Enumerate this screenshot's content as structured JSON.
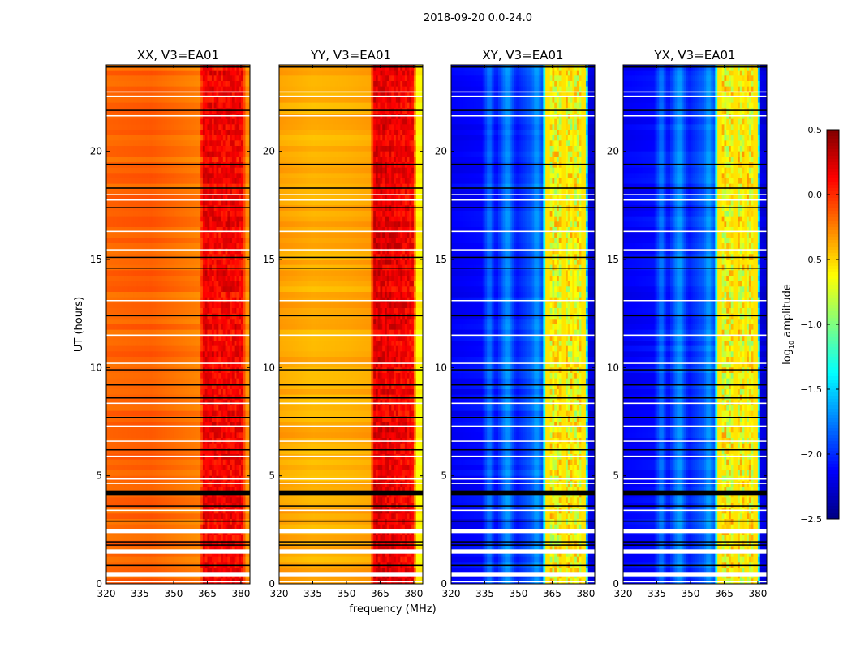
{
  "chart_data": {
    "type": "heatmap",
    "suptitle": "2018-09-20 0.0-24.0",
    "xlabel": "frequency (MHz)",
    "ylabel": "UT (hours)",
    "xlim": [
      320,
      384
    ],
    "ylim": [
      0,
      24
    ],
    "xticks": [
      "320",
      "335",
      "350",
      "365",
      "380"
    ],
    "xtick_values": [
      320,
      335,
      350,
      365,
      380
    ],
    "yticks": [
      "0",
      "5",
      "10",
      "15",
      "20"
    ],
    "ytick_values": [
      0,
      5,
      10,
      15,
      20
    ],
    "colorbar": {
      "label_main": "log",
      "label_sub": "10",
      "label_rest": " amplitude",
      "range": [
        -2.5,
        0.5
      ],
      "ticks": [
        "0.5",
        "0.0",
        "−0.5",
        "−1.0",
        "−1.5",
        "−2.0",
        "−2.5"
      ],
      "tick_values": [
        0.5,
        0.0,
        -0.5,
        -1.0,
        -1.5,
        -2.0,
        -2.5
      ],
      "colormap": "jet"
    },
    "panels": [
      {
        "title": "XX, V3=EA01",
        "profile": [
          [
            320,
            -0.18
          ],
          [
            340,
            -0.15
          ],
          [
            355,
            -0.22
          ],
          [
            362,
            -0.25
          ],
          [
            363,
            0.15
          ],
          [
            370,
            0.1
          ],
          [
            376,
            0.12
          ],
          [
            381,
            0.1
          ],
          [
            382,
            -0.3
          ],
          [
            384,
            -0.3
          ]
        ],
        "band_var": 0.25
      },
      {
        "title": "YY, V3=EA01",
        "profile": [
          [
            320,
            -0.35
          ],
          [
            335,
            -0.4
          ],
          [
            350,
            -0.38
          ],
          [
            361,
            -0.35
          ],
          [
            362,
            0.2
          ],
          [
            370,
            0.15
          ],
          [
            380,
            0.1
          ],
          [
            381,
            -0.6
          ],
          [
            384,
            -0.6
          ]
        ],
        "band_var": 0.25
      },
      {
        "title": "XY, V3=EA01",
        "profile": [
          [
            320,
            -2.15
          ],
          [
            334,
            -2.1
          ],
          [
            337,
            -1.75
          ],
          [
            340,
            -2.1
          ],
          [
            345,
            -1.65
          ],
          [
            349,
            -2.05
          ],
          [
            356,
            -1.85
          ],
          [
            358,
            -1.65
          ],
          [
            361,
            -1.9
          ],
          [
            362,
            -0.7
          ],
          [
            380,
            -0.7
          ],
          [
            381,
            -2.2
          ],
          [
            384,
            -2.25
          ]
        ],
        "band_var": 0.6
      },
      {
        "title": "YX, V3=EA01",
        "profile": [
          [
            320,
            -2.15
          ],
          [
            334,
            -2.1
          ],
          [
            337,
            -1.75
          ],
          [
            340,
            -2.1
          ],
          [
            345,
            -1.65
          ],
          [
            349,
            -2.05
          ],
          [
            356,
            -1.85
          ],
          [
            358,
            -1.65
          ],
          [
            361,
            -1.9
          ],
          [
            362,
            -0.7
          ],
          [
            380,
            -0.7
          ],
          [
            381,
            -2.2
          ],
          [
            384,
            -2.25
          ]
        ],
        "band_var": 0.6
      }
    ],
    "flagged_rows_black": [
      [
        23.9,
        0.05
      ],
      [
        21.9,
        0.05
      ],
      [
        19.4,
        0.06
      ],
      [
        18.3,
        0.06
      ],
      [
        17.4,
        0.05
      ],
      [
        15.1,
        0.05
      ],
      [
        14.6,
        0.05
      ],
      [
        12.4,
        0.06
      ],
      [
        9.9,
        0.05
      ],
      [
        9.2,
        0.05
      ],
      [
        8.6,
        0.05
      ],
      [
        7.7,
        0.05
      ],
      [
        6.2,
        0.05
      ],
      [
        4.2,
        0.25
      ],
      [
        3.6,
        0.05
      ],
      [
        2.9,
        0.06
      ],
      [
        1.95,
        0.05
      ],
      [
        1.8,
        0.05
      ],
      [
        0.85,
        0.06
      ]
    ],
    "flagged_rows_white": [
      [
        22.55,
        0.06
      ],
      [
        22.75,
        0.05
      ],
      [
        21.65,
        0.05
      ],
      [
        18.0,
        0.05
      ],
      [
        17.75,
        0.05
      ],
      [
        16.3,
        0.06
      ],
      [
        15.45,
        0.05
      ],
      [
        13.1,
        0.05
      ],
      [
        11.5,
        0.06
      ],
      [
        10.2,
        0.05
      ],
      [
        8.35,
        0.06
      ],
      [
        7.3,
        0.05
      ],
      [
        6.6,
        0.05
      ],
      [
        5.9,
        0.06
      ],
      [
        4.85,
        0.05
      ],
      [
        4.65,
        0.05
      ],
      [
        3.4,
        0.06
      ],
      [
        2.45,
        0.2
      ],
      [
        1.5,
        0.2
      ],
      [
        0.45,
        0.2
      ],
      [
        0.1,
        0.05
      ]
    ]
  }
}
